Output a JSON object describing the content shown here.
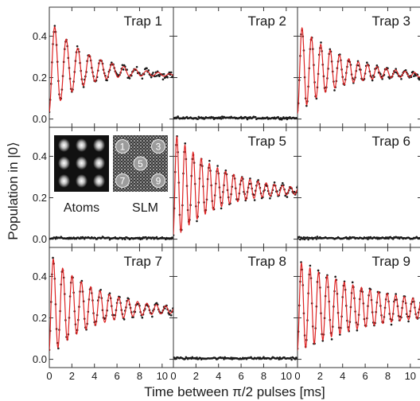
{
  "figure": {
    "ylabel": "Population in |0⟩",
    "xlabel": "Time between π/2 pulses [ms]"
  },
  "inset": {
    "atoms_label": "Atoms",
    "slm_label": "SLM",
    "slm_spot_numbers": [
      "1",
      "3",
      "5",
      "7",
      "9"
    ]
  },
  "colors": {
    "fit_line": "#dd2222",
    "data_points": "#1a1a1a",
    "frame": "#333333"
  },
  "chart_data": {
    "type": "scatter",
    "layout": "3x3 grid, shared axes",
    "xlim": [
      0,
      11
    ],
    "ylim": [
      -0.04,
      0.54
    ],
    "x_ticks": [
      0,
      2,
      4,
      6,
      8,
      10
    ],
    "y_ticks": [
      0.0,
      0.2,
      0.4
    ],
    "x_tick_labels": [
      "0",
      "2",
      "4",
      "6",
      "8",
      "10"
    ],
    "y_tick_labels": [
      "0.0",
      "0.2",
      "0.4"
    ],
    "series_encoding": "black dots = measured data, red line = damped sinusoidal fit",
    "panels": [
      {
        "title": "Trap 1",
        "row": 0,
        "col": 0,
        "fit": {
          "offset": 0.255,
          "amplitude": 0.225,
          "period_ms": 1.02,
          "decay_ms": 3.0,
          "phase": 3.3,
          "drift": -0.004
        },
        "note": "oscillating population"
      },
      {
        "title": "Trap 2",
        "row": 0,
        "col": 1,
        "fit": null,
        "data_level": 0.005,
        "note": "no atom, population near 0.0"
      },
      {
        "title": "Trap 3",
        "row": 0,
        "col": 2,
        "fit": {
          "offset": 0.245,
          "amplitude": 0.22,
          "period_ms": 0.83,
          "decay_ms": 3.5,
          "phase": 3.2,
          "drift": -0.003
        },
        "note": "oscillating population"
      },
      {
        "title": "",
        "row": 1,
        "col": 0,
        "fit": null,
        "data_level": 0.005,
        "note": "inset panel, population near 0.0"
      },
      {
        "title": "Trap 5",
        "row": 1,
        "col": 1,
        "fit": {
          "offset": 0.255,
          "amplitude": 0.26,
          "period_ms": 0.72,
          "decay_ms": 4.0,
          "phase": 3.6,
          "drift": -0.002
        },
        "note": "oscillating population"
      },
      {
        "title": "Trap 6",
        "row": 1,
        "col": 2,
        "fit": null,
        "data_level": 0.005,
        "note": "no atom, population near 0.0"
      },
      {
        "title": "Trap 7",
        "row": 2,
        "col": 0,
        "fit": {
          "offset": 0.26,
          "amplitude": 0.245,
          "period_ms": 0.83,
          "decay_ms": 4.0,
          "phase": 3.6,
          "drift": -0.002
        },
        "note": "oscillating population"
      },
      {
        "title": "Trap 8",
        "row": 2,
        "col": 1,
        "fit": null,
        "data_level": 0.005,
        "note": "no atom, population near 0.0"
      },
      {
        "title": "Trap 9",
        "row": 2,
        "col": 2,
        "fit": {
          "offset": 0.255,
          "amplitude": 0.22,
          "period_ms": 0.76,
          "decay_ms": 7.0,
          "phase": 3.4,
          "drift": -0.001
        },
        "note": "oscillating population"
      }
    ]
  }
}
